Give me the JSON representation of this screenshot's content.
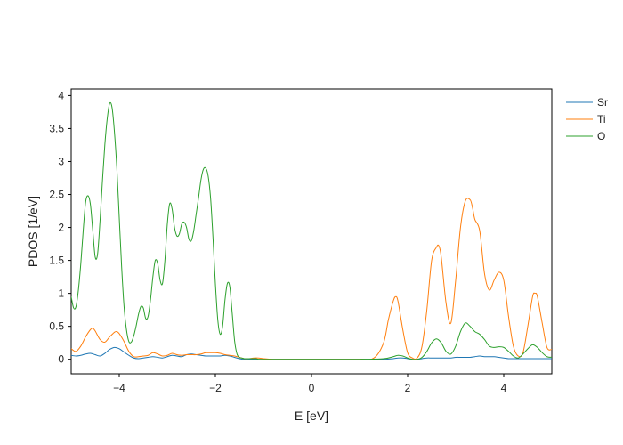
{
  "chart_data": {
    "type": "line",
    "title": "",
    "xlabel": "E [eV]",
    "ylabel": "PDOS [1/eV]",
    "xlim": [
      -5,
      5
    ],
    "ylim": [
      -0.22,
      4.1
    ],
    "xticks": [
      -4,
      -2,
      0,
      2,
      4
    ],
    "xtick_labels": [
      "−4",
      "−2",
      "0",
      "2",
      "4"
    ],
    "yticks": [
      0,
      0.5,
      1,
      1.5,
      2,
      2.5,
      3,
      3.5,
      4
    ],
    "ytick_labels": [
      "0",
      "0.5",
      "1",
      "1.5",
      "2",
      "2.5",
      "3",
      "3.5",
      "4"
    ],
    "grid": false,
    "legend_position": "right",
    "series": [
      {
        "name": "Sr",
        "color": "#1f77b4",
        "x": [
          -5,
          -4.9,
          -4.8,
          -4.7,
          -4.6,
          -4.5,
          -4.4,
          -4.3,
          -4.2,
          -4.1,
          -4.0,
          -3.9,
          -3.8,
          -3.7,
          -3.6,
          -3.5,
          -3.4,
          -3.3,
          -3.2,
          -3.1,
          -3.0,
          -2.9,
          -2.8,
          -2.7,
          -2.6,
          -2.5,
          -2.4,
          -2.3,
          -2.2,
          -2.1,
          -2.0,
          -1.9,
          -1.8,
          -1.7,
          -1.6,
          -1.5,
          -1.4,
          -1.3,
          -1.2,
          -1.1,
          -1.0,
          -0.8,
          -0.5,
          0.0,
          0.5,
          1.0,
          1.5,
          1.7,
          1.8,
          1.9,
          2.0,
          2.1,
          2.2,
          2.3,
          2.4,
          2.5,
          2.6,
          2.7,
          2.8,
          2.9,
          3.0,
          3.1,
          3.2,
          3.3,
          3.4,
          3.5,
          3.6,
          3.7,
          3.8,
          3.9,
          4.0,
          4.1,
          4.2,
          4.3,
          4.4,
          4.5,
          4.6,
          4.7,
          4.8,
          4.9,
          5.0
        ],
        "y": [
          0.06,
          0.05,
          0.06,
          0.08,
          0.09,
          0.07,
          0.05,
          0.09,
          0.15,
          0.18,
          0.16,
          0.11,
          0.06,
          0.02,
          0.01,
          0.02,
          0.03,
          0.04,
          0.03,
          0.02,
          0.04,
          0.06,
          0.05,
          0.04,
          0.07,
          0.08,
          0.07,
          0.06,
          0.05,
          0.05,
          0.05,
          0.05,
          0.06,
          0.05,
          0.03,
          0.01,
          0.0,
          0.0,
          0.0,
          0.0,
          0.0,
          0.0,
          0.0,
          0.0,
          0.0,
          0.0,
          0.0,
          0.01,
          0.02,
          0.02,
          0.01,
          0.0,
          0.0,
          0.01,
          0.02,
          0.02,
          0.02,
          0.02,
          0.02,
          0.02,
          0.03,
          0.03,
          0.03,
          0.03,
          0.04,
          0.05,
          0.04,
          0.04,
          0.04,
          0.03,
          0.02,
          0.01,
          0.01,
          0.01,
          0.01,
          0.01,
          0.01,
          0.01,
          0.01,
          0.01,
          0.01
        ]
      },
      {
        "name": "Ti",
        "color": "#ff7f0e",
        "x": [
          -5,
          -4.9,
          -4.8,
          -4.7,
          -4.6,
          -4.55,
          -4.5,
          -4.4,
          -4.3,
          -4.2,
          -4.1,
          -4.05,
          -4.0,
          -3.9,
          -3.8,
          -3.7,
          -3.6,
          -3.5,
          -3.4,
          -3.3,
          -3.2,
          -3.1,
          -3.0,
          -2.9,
          -2.8,
          -2.7,
          -2.6,
          -2.5,
          -2.4,
          -2.3,
          -2.2,
          -2.1,
          -2.0,
          -1.9,
          -1.8,
          -1.7,
          -1.6,
          -1.5,
          -1.4,
          -1.3,
          -1.2,
          -1.1,
          -1.0,
          -0.8,
          -0.5,
          0.0,
          0.5,
          1.0,
          1.3,
          1.5,
          1.6,
          1.7,
          1.75,
          1.8,
          1.9,
          2.0,
          2.1,
          2.2,
          2.3,
          2.4,
          2.5,
          2.6,
          2.65,
          2.7,
          2.8,
          2.9,
          3.0,
          3.1,
          3.2,
          3.3,
          3.35,
          3.4,
          3.5,
          3.6,
          3.7,
          3.8,
          3.9,
          4.0,
          4.1,
          4.2,
          4.3,
          4.4,
          4.5,
          4.6,
          4.65,
          4.7,
          4.8,
          4.9,
          5.0
        ],
        "y": [
          0.16,
          0.12,
          0.2,
          0.34,
          0.45,
          0.47,
          0.43,
          0.3,
          0.26,
          0.34,
          0.41,
          0.42,
          0.39,
          0.27,
          0.12,
          0.04,
          0.04,
          0.05,
          0.06,
          0.1,
          0.08,
          0.05,
          0.06,
          0.09,
          0.07,
          0.06,
          0.07,
          0.07,
          0.07,
          0.08,
          0.1,
          0.1,
          0.1,
          0.09,
          0.07,
          0.06,
          0.05,
          0.03,
          0.01,
          0.01,
          0.02,
          0.02,
          0.01,
          0.0,
          0.0,
          0.0,
          0.0,
          0.0,
          0.02,
          0.25,
          0.6,
          0.88,
          0.95,
          0.88,
          0.45,
          0.1,
          0.02,
          0.02,
          0.2,
          0.75,
          1.5,
          1.7,
          1.72,
          1.55,
          0.85,
          0.55,
          1.2,
          2.0,
          2.4,
          2.42,
          2.3,
          2.12,
          1.95,
          1.3,
          1.05,
          1.2,
          1.32,
          1.2,
          0.65,
          0.2,
          0.05,
          0.1,
          0.5,
          0.95,
          1.0,
          0.95,
          0.55,
          0.18,
          0.15
        ]
      },
      {
        "name": "O",
        "color": "#2ca02c",
        "x": [
          -5,
          -4.95,
          -4.9,
          -4.85,
          -4.8,
          -4.75,
          -4.7,
          -4.65,
          -4.6,
          -4.55,
          -4.5,
          -4.45,
          -4.4,
          -4.35,
          -4.3,
          -4.25,
          -4.2,
          -4.15,
          -4.1,
          -4.05,
          -4.0,
          -3.95,
          -3.9,
          -3.85,
          -3.8,
          -3.75,
          -3.7,
          -3.65,
          -3.6,
          -3.55,
          -3.5,
          -3.45,
          -3.4,
          -3.35,
          -3.3,
          -3.25,
          -3.2,
          -3.15,
          -3.1,
          -3.05,
          -3.0,
          -2.95,
          -2.9,
          -2.85,
          -2.8,
          -2.75,
          -2.7,
          -2.65,
          -2.6,
          -2.55,
          -2.5,
          -2.45,
          -2.4,
          -2.35,
          -2.3,
          -2.25,
          -2.2,
          -2.15,
          -2.1,
          -2.05,
          -2.0,
          -1.95,
          -1.9,
          -1.85,
          -1.8,
          -1.75,
          -1.7,
          -1.65,
          -1.6,
          -1.55,
          -1.5,
          -1.45,
          -1.4,
          -1.35,
          -1.3,
          -1.25,
          -1.2,
          -1.15,
          -1.1,
          -1.05,
          -1.0,
          -0.95,
          -0.9,
          -0.85,
          -0.8,
          -0.7,
          -0.5,
          0.0,
          0.5,
          1.0,
          1.5,
          1.7,
          1.8,
          1.9,
          2.0,
          2.1,
          2.2,
          2.3,
          2.4,
          2.5,
          2.6,
          2.7,
          2.8,
          2.9,
          3.0,
          3.1,
          3.2,
          3.3,
          3.4,
          3.5,
          3.6,
          3.7,
          3.8,
          3.9,
          4.0,
          4.1,
          4.2,
          4.3,
          4.4,
          4.5,
          4.6,
          4.7,
          4.8,
          4.9,
          5.0
        ],
        "y": [
          0.95,
          0.78,
          0.8,
          1.05,
          1.45,
          1.95,
          2.38,
          2.48,
          2.35,
          1.95,
          1.55,
          1.6,
          2.1,
          2.7,
          3.25,
          3.65,
          3.88,
          3.82,
          3.45,
          2.9,
          2.15,
          1.4,
          0.8,
          0.45,
          0.27,
          0.26,
          0.35,
          0.5,
          0.68,
          0.8,
          0.78,
          0.62,
          0.65,
          0.9,
          1.25,
          1.5,
          1.45,
          1.2,
          1.15,
          1.5,
          2.05,
          2.36,
          2.28,
          2.0,
          1.87,
          1.9,
          2.05,
          2.08,
          2.0,
          1.82,
          1.8,
          1.95,
          2.2,
          2.45,
          2.72,
          2.88,
          2.9,
          2.78,
          2.45,
          1.85,
          1.15,
          0.6,
          0.38,
          0.5,
          0.9,
          1.15,
          1.1,
          0.7,
          0.28,
          0.08,
          0.03,
          0.02,
          0.01,
          0.01,
          0.01,
          0.01,
          0.01,
          0.01,
          0.0,
          0.0,
          0.0,
          0.0,
          0.0,
          0.0,
          0.0,
          0.0,
          0.0,
          0.0,
          0.0,
          0.0,
          0.01,
          0.04,
          0.06,
          0.05,
          0.02,
          0.0,
          0.0,
          0.03,
          0.12,
          0.25,
          0.31,
          0.25,
          0.12,
          0.08,
          0.2,
          0.42,
          0.55,
          0.5,
          0.42,
          0.38,
          0.3,
          0.2,
          0.18,
          0.19,
          0.18,
          0.12,
          0.05,
          0.02,
          0.08,
          0.16,
          0.22,
          0.18,
          0.1,
          0.04,
          0.03
        ]
      }
    ]
  }
}
